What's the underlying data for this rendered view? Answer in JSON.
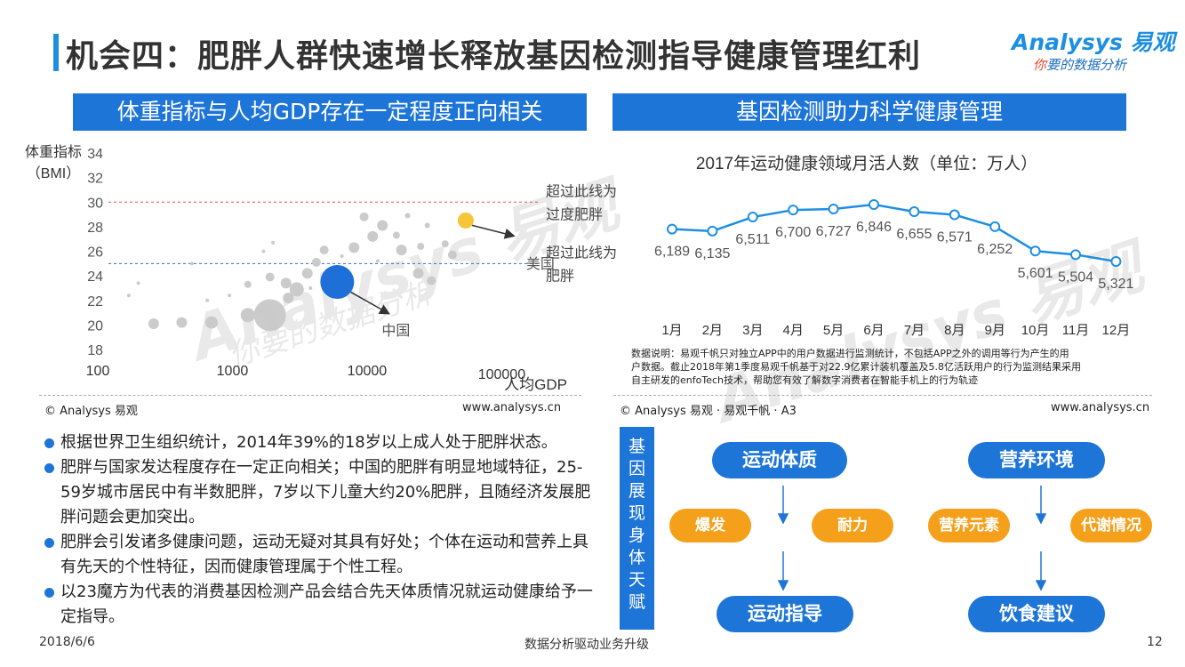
{
  "header": {
    "title": "机会四：肥胖人群快速增长释放基因检测指导健康管理红利",
    "logo_main": "Analysys 易观",
    "logo_sub_highlight": "你",
    "logo_sub": "要的数据分析"
  },
  "left_section": {
    "header": "体重指标与人均GDP存在一定程度正向相关",
    "copyright": "© Analysys 易观",
    "url": "www.analysys.cn"
  },
  "right_section": {
    "header": "基因检测助力科学健康管理",
    "note": [
      "数据说明：易观千帆只对独立APP中的用户数据进行监测统计，不包括APP之外的调用等行为产生的用",
      "户数据。截止2018年第1季度易观千帆基于对22.9亿累计装机覆盖及5.8亿活跃用户的行为监测结果采用",
      "自主研发的enfoTech技术，帮助您有效了解数字消费者在智能手机上的行为轨迹"
    ],
    "copyright": "© Analysys 易观 · 易观千帆 · A3",
    "url": "www.analysys.cn"
  },
  "watermark_text": "Analysys 易观",
  "watermark_sub": "你要的数据分析",
  "bullets": [
    "根据世界卫生组织统计，2014年39%的18岁以上成人处于肥胖状态。",
    "肥胖与国家发达程度存在一定正向相关；中国的肥胖有明显地域特征，25-59岁城市居民中有半数肥胖，7岁以下儿童大约20%肥胖，且随经济发展肥胖问题会更加突出。",
    "肥胖会引发诸多健康问题，运动无疑对其具有好处；个体在运动和营养上具有先天的个性特征，因而健康管理属于个性工程。",
    "以23魔方为代表的消费基因检测产品会结合先天体质情况就运动健康给予一定指导。"
  ],
  "gene_diagram": {
    "side_label": "基因展现身体天赋",
    "left": {
      "top": "运动体质",
      "a": "爆发",
      "b": "耐力",
      "bottom": "运动指导"
    },
    "right": {
      "top": "营养环境",
      "a": "营养元素",
      "b": "代谢情况",
      "bottom": "饮食建议"
    },
    "colors": {
      "blue": "#1e75d8",
      "orange": "#f5a01a"
    }
  },
  "footer": {
    "date": "2018/6/6",
    "center": "数据分析驱动业务升级",
    "page": "12"
  },
  "chart_data": [
    {
      "type": "scatter",
      "title": "",
      "xlabel": "人均GDP",
      "ylabel": "体重指标（BMI）",
      "x_scale": "log",
      "x_ticks": [
        "100",
        "1000",
        "10000",
        "100000"
      ],
      "xlim": [
        100,
        200000
      ],
      "y_ticks": [
        18,
        20,
        22,
        24,
        26,
        28,
        30,
        32,
        34
      ],
      "ylim": [
        18,
        34
      ],
      "reference_lines": [
        {
          "y": 30,
          "label": "超过此线为过度肥胖",
          "color": "#d9534f"
        },
        {
          "y": 25,
          "label": "超过此线为肥胖",
          "color": "#2f72c4"
        }
      ],
      "highlights": [
        {
          "label": "美国",
          "x": 54000,
          "y": 28.5,
          "color": "#f7c53a"
        },
        {
          "label": "中国",
          "x": 6000,
          "y": 23.5,
          "color": "#1e6fd8"
        }
      ],
      "points": [
        {
          "x": 260,
          "y": 20.1,
          "s": 6
        },
        {
          "x": 420,
          "y": 20.2,
          "s": 6
        },
        {
          "x": 700,
          "y": 20.2,
          "s": 7
        },
        {
          "x": 1300,
          "y": 20.8,
          "s": 8
        },
        {
          "x": 1900,
          "y": 20.8,
          "s": 18
        },
        {
          "x": 2600,
          "y": 22.2,
          "s": 6
        },
        {
          "x": 3000,
          "y": 22.9,
          "s": 8
        },
        {
          "x": 2500,
          "y": 23.4,
          "s": 6
        },
        {
          "x": 1300,
          "y": 23.3,
          "s": 4
        },
        {
          "x": 1900,
          "y": 23.9,
          "s": 5
        },
        {
          "x": 3600,
          "y": 24.2,
          "s": 6
        },
        {
          "x": 4200,
          "y": 25.1,
          "s": 5
        },
        {
          "x": 4800,
          "y": 26.1,
          "s": 5
        },
        {
          "x": 8000,
          "y": 26.3,
          "s": 6
        },
        {
          "x": 11000,
          "y": 27.2,
          "s": 6
        },
        {
          "x": 13000,
          "y": 28.1,
          "s": 6
        },
        {
          "x": 9500,
          "y": 28.8,
          "s": 5
        },
        {
          "x": 18000,
          "y": 26.1,
          "s": 6
        },
        {
          "x": 16500,
          "y": 27.3,
          "s": 4
        },
        {
          "x": 25000,
          "y": 26.4,
          "s": 4
        },
        {
          "x": 24000,
          "y": 24.2,
          "s": 6
        },
        {
          "x": 30000,
          "y": 23.6,
          "s": 5
        },
        {
          "x": 43000,
          "y": 25.7,
          "s": 5
        },
        {
          "x": 38000,
          "y": 26.6,
          "s": 4
        },
        {
          "x": 28000,
          "y": 28.1,
          "s": 3
        },
        {
          "x": 20000,
          "y": 28.9,
          "s": 3
        },
        {
          "x": 200,
          "y": 23.4,
          "s": 2
        },
        {
          "x": 170,
          "y": 22.4,
          "s": 2
        },
        {
          "x": 650,
          "y": 22.0,
          "s": 2
        },
        {
          "x": 950,
          "y": 22.4,
          "s": 2
        },
        {
          "x": 2000,
          "y": 26.7,
          "s": 2
        },
        {
          "x": 1700,
          "y": 26.0,
          "s": 2
        },
        {
          "x": 500,
          "y": 25.0,
          "s": 2
        },
        {
          "x": 6500,
          "y": 25.6,
          "s": 2
        },
        {
          "x": 3800,
          "y": 23.0,
          "s": 2
        },
        {
          "x": 12000,
          "y": 25.2,
          "s": 2
        }
      ]
    },
    {
      "type": "line",
      "title": "2017年运动健康领域月活人数（单位：万人）",
      "categories": [
        "1月",
        "2月",
        "3月",
        "4月",
        "5月",
        "6月",
        "7月",
        "8月",
        "9月",
        "10月",
        "11月",
        "12月"
      ],
      "series": [
        {
          "values": [
            6189,
            6135,
            6511,
            6700,
            6727,
            6846,
            6655,
            6571,
            6252,
            5601,
            5504,
            5321
          ],
          "color": "#1e8fe0"
        }
      ],
      "value_labels": [
        "6,189",
        "6,135",
        "6,511",
        "6,700",
        "6,727",
        "6,846",
        "6,655",
        "6,571",
        "6,252",
        "5,601",
        "5,504",
        "5,321"
      ]
    }
  ]
}
